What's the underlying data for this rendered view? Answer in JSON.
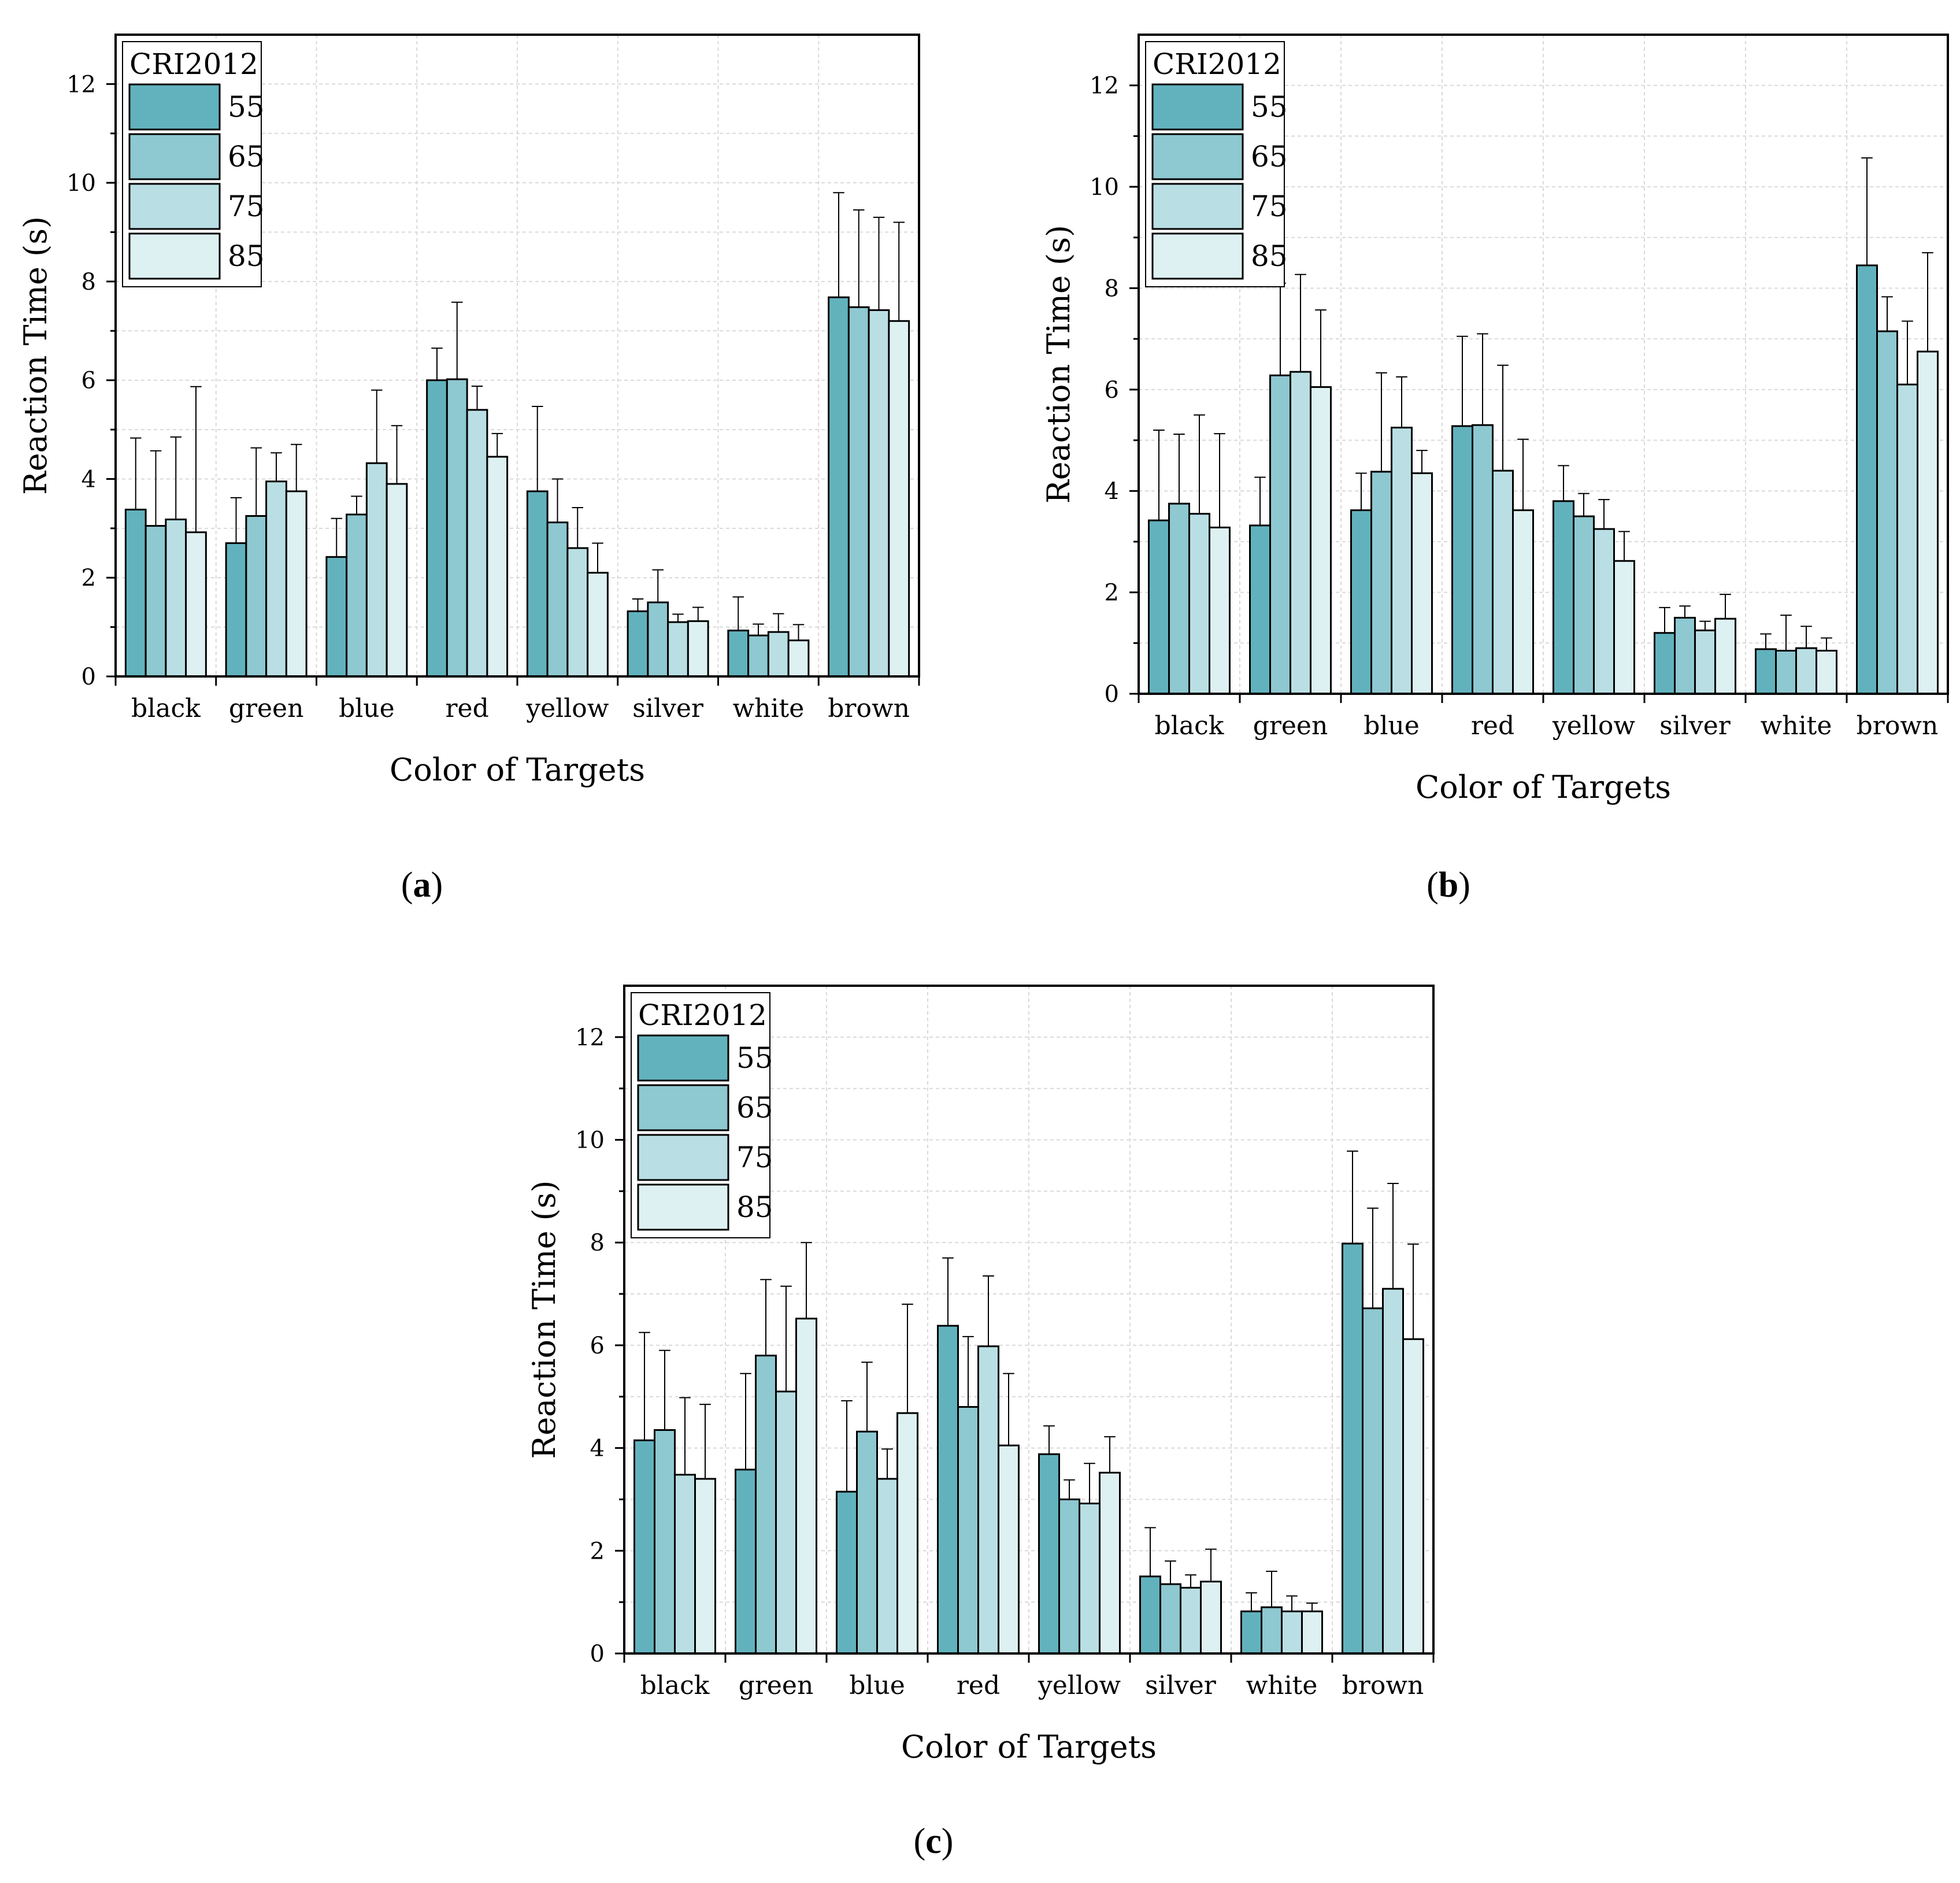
{
  "figure": {
    "panel_labels": [
      "a",
      "b",
      "c"
    ]
  },
  "colors": {
    "55": "#62b2bd",
    "65": "#8ec8d0",
    "75": "#b9dfe4",
    "85": "#ddf0f2",
    "grid": "#d9d9d9",
    "axis": "#000000"
  },
  "chart_data": [
    {
      "type": "bar",
      "panel": "a",
      "categories": [
        "black",
        "green",
        "blue",
        "red",
        "yellow",
        "silver",
        "white",
        "brown"
      ],
      "xlabel": "Color of Targets",
      "ylabel": "Reaction Time (s)",
      "ylim": [
        0,
        13
      ],
      "yticks": [
        0,
        2,
        4,
        6,
        8,
        10,
        12
      ],
      "grid": true,
      "legend": {
        "title": "CRI2012",
        "placement": "top-left"
      },
      "series": [
        {
          "name": "55",
          "values": [
            3.38,
            2.7,
            2.42,
            6.0,
            3.75,
            1.32,
            0.93,
            7.68
          ],
          "errors": [
            1.45,
            0.92,
            0.78,
            0.65,
            1.72,
            0.25,
            0.68,
            2.12
          ]
        },
        {
          "name": "65",
          "values": [
            3.05,
            3.25,
            3.28,
            6.02,
            3.12,
            1.5,
            0.83,
            7.48
          ],
          "errors": [
            1.52,
            1.38,
            0.37,
            1.56,
            0.88,
            0.66,
            0.23,
            1.97
          ]
        },
        {
          "name": "75",
          "values": [
            3.18,
            3.95,
            4.32,
            5.4,
            2.6,
            1.1,
            0.9,
            7.42
          ],
          "errors": [
            1.67,
            0.58,
            1.48,
            0.48,
            0.82,
            0.16,
            0.37,
            1.88
          ]
        },
        {
          "name": "85",
          "values": [
            2.92,
            3.75,
            3.9,
            4.45,
            2.1,
            1.12,
            0.73,
            7.2
          ],
          "errors": [
            2.95,
            0.95,
            1.18,
            0.47,
            0.6,
            0.28,
            0.32,
            2.0
          ]
        }
      ]
    },
    {
      "type": "bar",
      "panel": "b",
      "categories": [
        "black",
        "green",
        "blue",
        "red",
        "yellow",
        "silver",
        "white",
        "brown"
      ],
      "xlabel": "Color of Targets",
      "ylabel": "Reaction Time (s)",
      "ylim": [
        0,
        13
      ],
      "yticks": [
        0,
        2,
        4,
        6,
        8,
        10,
        12
      ],
      "grid": true,
      "legend": {
        "title": "CRI2012",
        "placement": "top-left"
      },
      "series": [
        {
          "name": "55",
          "values": [
            3.42,
            3.32,
            3.62,
            5.28,
            3.8,
            1.2,
            0.88,
            8.45
          ],
          "errors": [
            1.78,
            0.95,
            0.73,
            1.77,
            0.7,
            0.5,
            0.3,
            2.12
          ]
        },
        {
          "name": "65",
          "values": [
            3.75,
            6.28,
            4.38,
            5.3,
            3.5,
            1.5,
            0.85,
            7.15
          ],
          "errors": [
            1.37,
            1.82,
            1.95,
            1.8,
            0.45,
            0.23,
            0.7,
            0.68
          ]
        },
        {
          "name": "75",
          "values": [
            3.55,
            6.35,
            5.25,
            4.4,
            3.25,
            1.25,
            0.9,
            6.1
          ],
          "errors": [
            1.95,
            1.92,
            1.0,
            2.08,
            0.58,
            0.18,
            0.43,
            1.25
          ]
        },
        {
          "name": "85",
          "values": [
            3.28,
            6.05,
            4.35,
            3.62,
            2.62,
            1.48,
            0.85,
            6.75
          ],
          "errors": [
            1.85,
            1.52,
            0.45,
            1.4,
            0.58,
            0.48,
            0.25,
            1.95
          ]
        }
      ]
    },
    {
      "type": "bar",
      "panel": "c",
      "categories": [
        "black",
        "green",
        "blue",
        "red",
        "yellow",
        "silver",
        "white",
        "brown"
      ],
      "xlabel": "Color of Targets",
      "ylabel": "Reaction Time (s)",
      "ylim": [
        0,
        13
      ],
      "yticks": [
        0,
        2,
        4,
        6,
        8,
        10,
        12
      ],
      "grid": true,
      "legend": {
        "title": "CRI2012",
        "placement": "top-left"
      },
      "series": [
        {
          "name": "55",
          "values": [
            4.15,
            3.58,
            3.15,
            6.38,
            3.88,
            1.5,
            0.82,
            7.98
          ],
          "errors": [
            2.1,
            1.87,
            1.77,
            1.32,
            0.55,
            0.95,
            0.36,
            1.8
          ]
        },
        {
          "name": "65",
          "values": [
            4.35,
            5.8,
            4.32,
            4.8,
            3.0,
            1.35,
            0.9,
            6.72
          ],
          "errors": [
            1.55,
            1.48,
            1.35,
            1.37,
            0.38,
            0.45,
            0.7,
            1.95
          ]
        },
        {
          "name": "75",
          "values": [
            3.48,
            5.1,
            3.4,
            5.98,
            2.92,
            1.28,
            0.82,
            7.1
          ],
          "errors": [
            1.5,
            2.05,
            0.58,
            1.37,
            0.78,
            0.25,
            0.3,
            2.05
          ]
        },
        {
          "name": "85",
          "values": [
            3.4,
            6.52,
            4.68,
            4.05,
            3.52,
            1.4,
            0.82,
            6.12
          ],
          "errors": [
            1.45,
            1.48,
            2.12,
            1.4,
            0.7,
            0.63,
            0.16,
            1.85
          ]
        }
      ]
    }
  ]
}
